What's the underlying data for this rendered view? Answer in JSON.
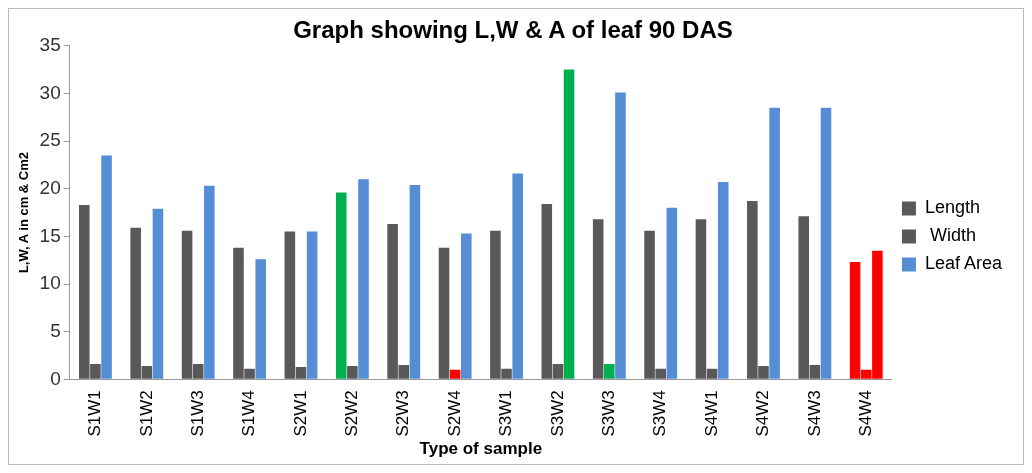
{
  "chart_data": {
    "type": "bar",
    "title": "Graph showing L,W & A of leaf 90 DAS",
    "xlabel": "Type of sample",
    "ylabel": "L,W, A in cm & Cm2",
    "categories": [
      "S1W1",
      "S1W2",
      "S1W3",
      "S1W4",
      "S2W1",
      "S2W2",
      "S2W3",
      "S2W4",
      "S3W1",
      "S3W2",
      "S3W3",
      "S3W4",
      "S4W1",
      "S4W2",
      "S4W3",
      "S4W4"
    ],
    "series": [
      {
        "name": "Length",
        "color": "#595959",
        "colors": [
          "#595959",
          "#595959",
          "#595959",
          "#595959",
          "#595959",
          "#00b050",
          "#595959",
          "#595959",
          "#595959",
          "#595959",
          "#595959",
          "#595959",
          "#595959",
          "#595959",
          "#595959",
          "#ff0000"
        ],
        "values": [
          18.3,
          15.9,
          15.6,
          13.8,
          15.5,
          19.6,
          16.3,
          13.8,
          15.6,
          18.4,
          16.8,
          15.6,
          16.8,
          18.7,
          17.1,
          12.3
        ]
      },
      {
        "name": " Width",
        "color": "#595959",
        "colors": [
          "#595959",
          "#595959",
          "#595959",
          "#595959",
          "#595959",
          "#595959",
          "#595959",
          "#ff0000",
          "#595959",
          "#595959",
          "#00b050",
          "#595959",
          "#595959",
          "#595959",
          "#595959",
          "#ff0000"
        ],
        "values": [
          1.6,
          1.4,
          1.6,
          1.1,
          1.3,
          1.4,
          1.5,
          1.0,
          1.1,
          1.6,
          1.6,
          1.1,
          1.1,
          1.4,
          1.5,
          1.0
        ]
      },
      {
        "name": "Leaf Area",
        "color": "#558ed5",
        "colors": [
          "#558ed5",
          "#558ed5",
          "#558ed5",
          "#558ed5",
          "#558ed5",
          "#558ed5",
          "#558ed5",
          "#558ed5",
          "#558ed5",
          "#00b050",
          "#558ed5",
          "#558ed5",
          "#558ed5",
          "#558ed5",
          "#558ed5",
          "#ff0000"
        ],
        "values": [
          23.5,
          17.9,
          20.3,
          12.6,
          15.5,
          21.0,
          20.4,
          15.3,
          21.6,
          32.5,
          30.1,
          18.0,
          20.7,
          28.5,
          28.5,
          13.5
        ]
      }
    ],
    "ylim": [
      0,
      35
    ],
    "yticks": [
      0,
      5,
      10,
      15,
      20,
      25,
      30,
      35
    ],
    "grid": false,
    "legend": "right"
  }
}
